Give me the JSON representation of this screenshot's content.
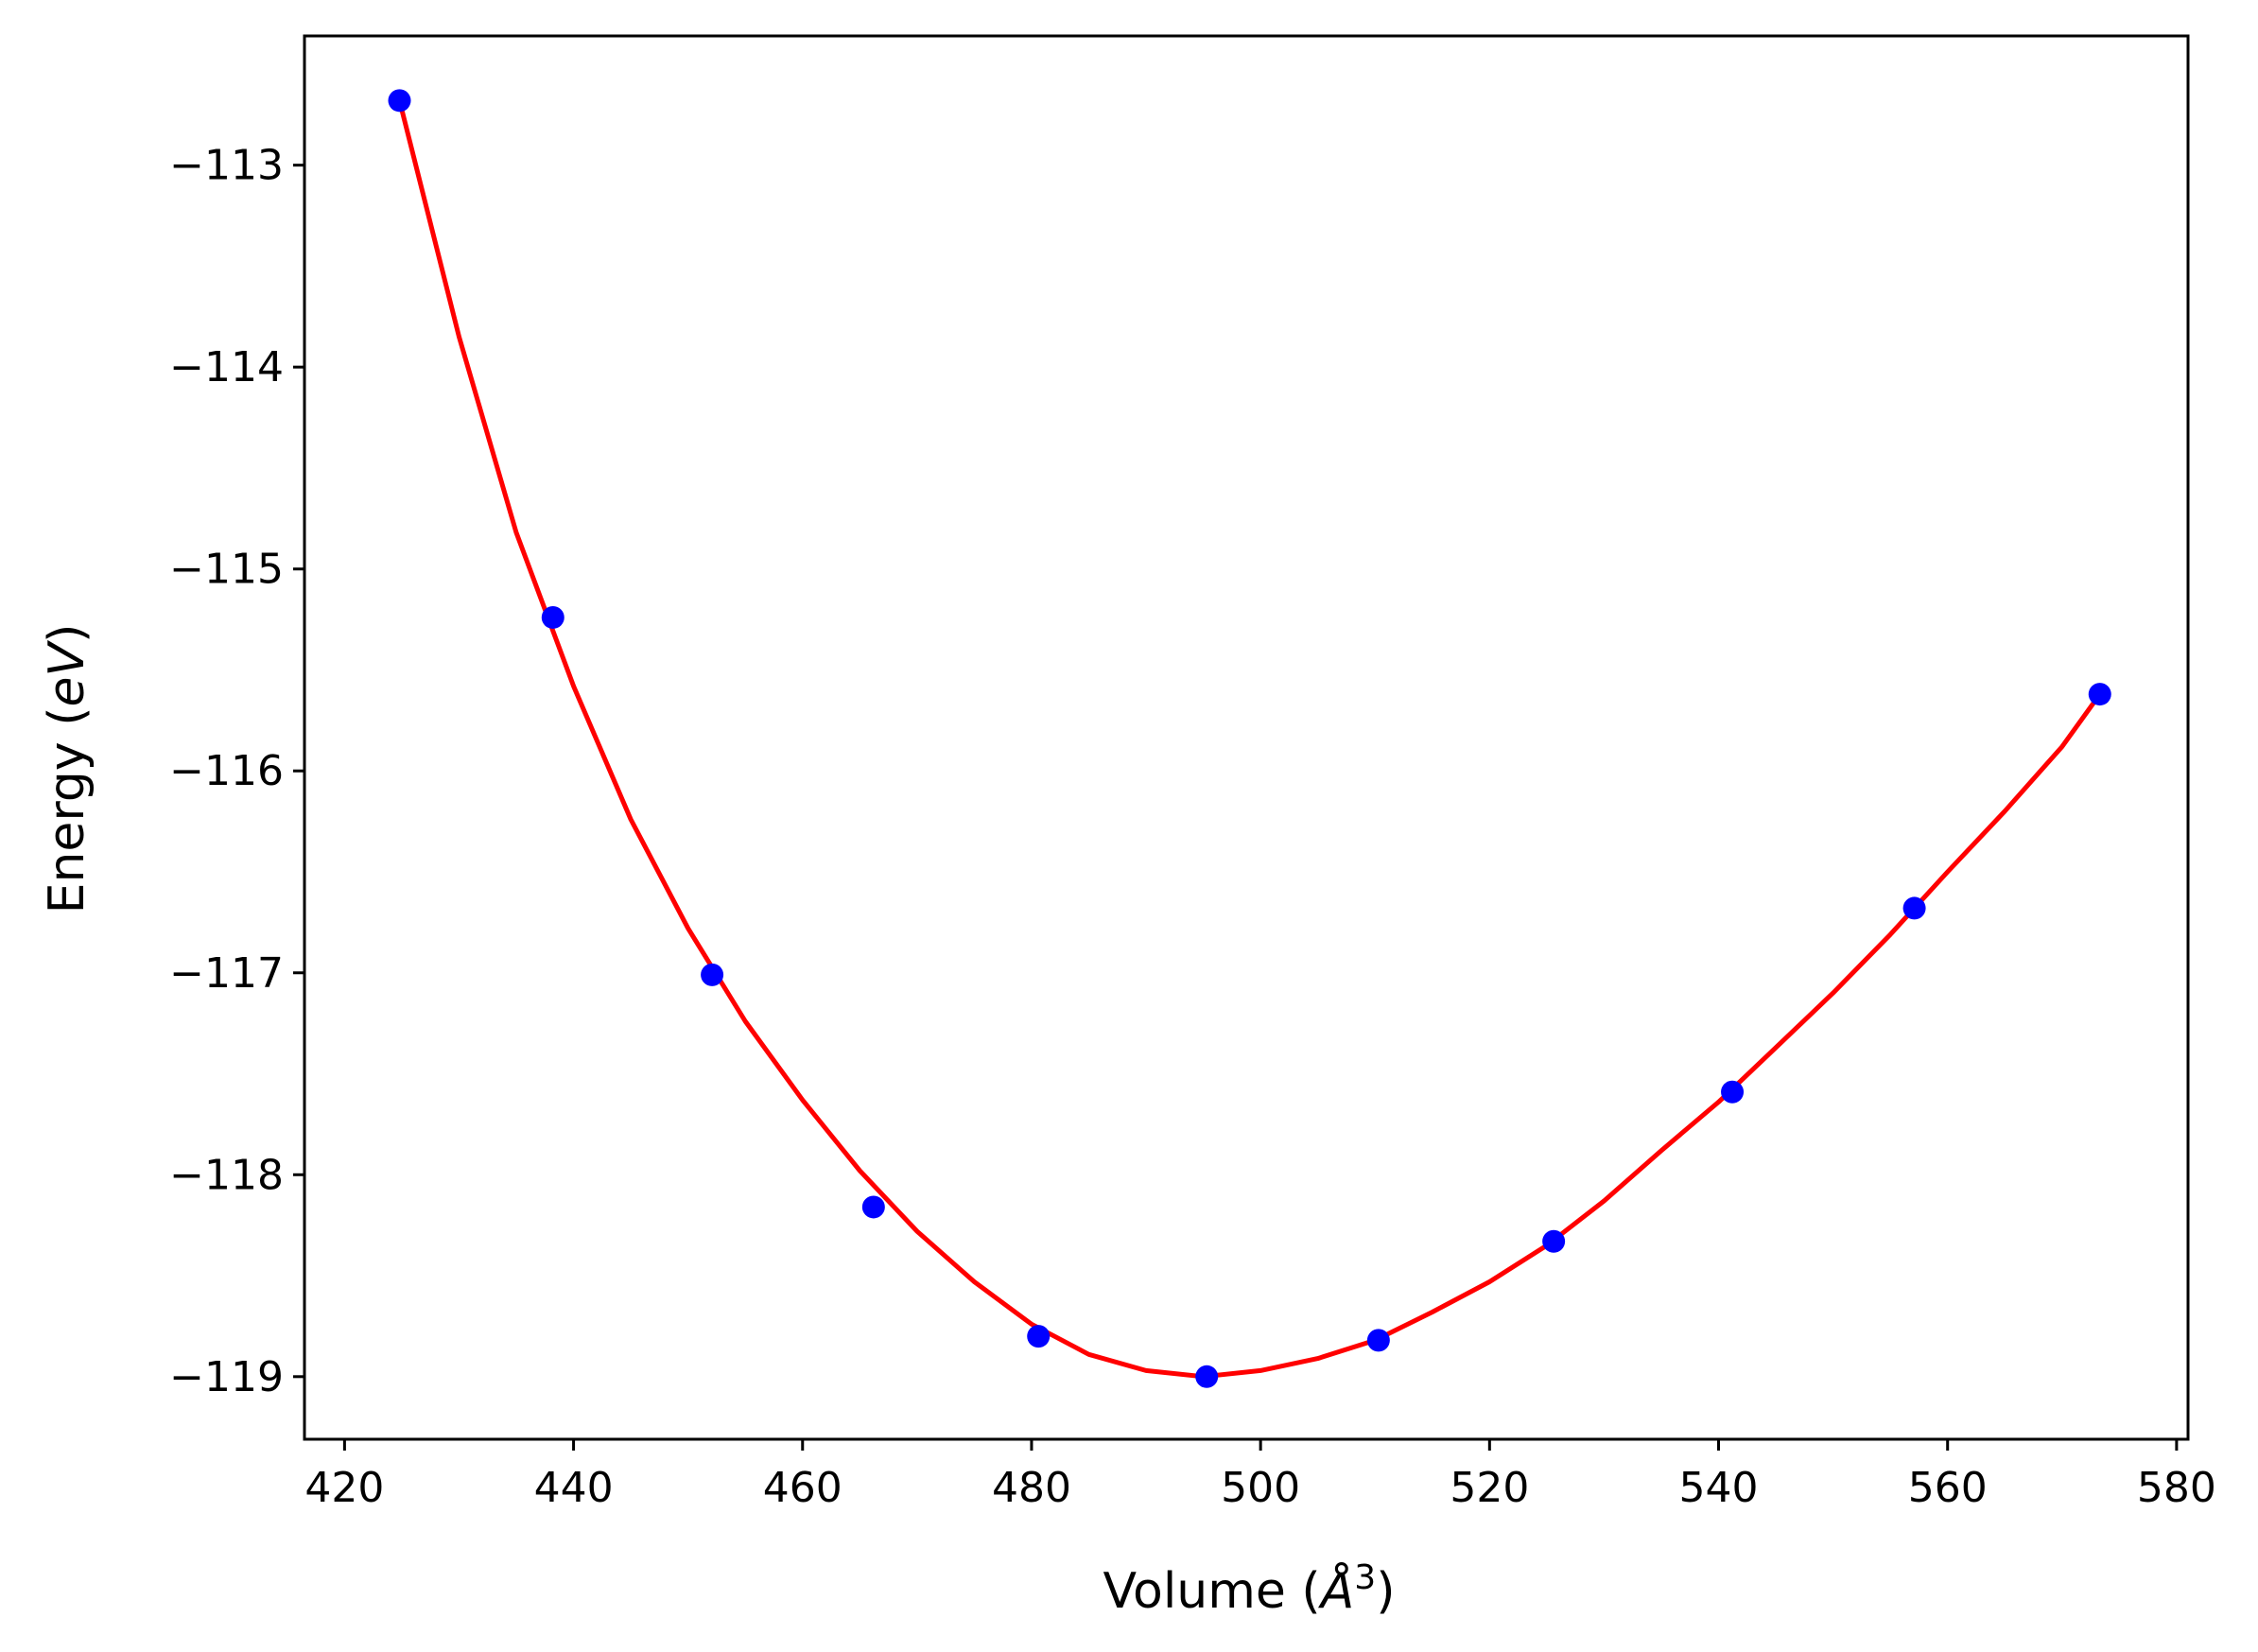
{
  "chart_data": {
    "type": "scatter",
    "title": "",
    "xlabel": {
      "prefix": "Volume (",
      "symbol": "Å",
      "exponent": "3",
      "suffix": ")"
    },
    "ylabel": {
      "prefix": "Energy (",
      "unit": "eV",
      "suffix": ")"
    },
    "xlim": [
      416.5,
      581
    ],
    "ylim": [
      -119.31,
      -112.36
    ],
    "xticks": [
      420,
      440,
      460,
      480,
      500,
      520,
      540,
      560,
      580
    ],
    "xtick_labels": [
      "420",
      "440",
      "460",
      "480",
      "500",
      "520",
      "540",
      "560",
      "580"
    ],
    "yticks": [
      -113,
      -114,
      -115,
      -116,
      -117,
      -118,
      -119
    ],
    "ytick_labels": [
      "−113",
      "−114",
      "−115",
      "−116",
      "−117",
      "−118",
      "−119"
    ],
    "grid": false,
    "legend": "none",
    "points": {
      "color": "#0000ff",
      "x": [
        424.8,
        438.2,
        452.1,
        466.2,
        480.6,
        495.3,
        510.3,
        525.6,
        541.2,
        557.1,
        573.3
      ],
      "y": [
        -112.68,
        -115.24,
        -117.01,
        -118.16,
        -118.8,
        -119.0,
        -118.82,
        -118.33,
        -117.59,
        -116.68,
        -115.62
      ]
    },
    "fit_curve": {
      "color": "#ff0000",
      "x": [
        424.8,
        430,
        435,
        440,
        445,
        450,
        455,
        460,
        465,
        470,
        475,
        480,
        485,
        490,
        495,
        500,
        505,
        510,
        515,
        520,
        525,
        530,
        535,
        540,
        545,
        550,
        555,
        560,
        565,
        570,
        573.3
      ],
      "y": [
        -112.68,
        -113.85,
        -114.82,
        -115.58,
        -116.24,
        -116.78,
        -117.24,
        -117.63,
        -117.98,
        -118.28,
        -118.53,
        -118.74,
        -118.89,
        -118.97,
        -119.0,
        -118.97,
        -118.91,
        -118.82,
        -118.68,
        -118.53,
        -118.35,
        -118.13,
        -117.88,
        -117.64,
        -117.37,
        -117.1,
        -116.81,
        -116.5,
        -116.2,
        -115.88,
        -115.62
      ]
    }
  }
}
